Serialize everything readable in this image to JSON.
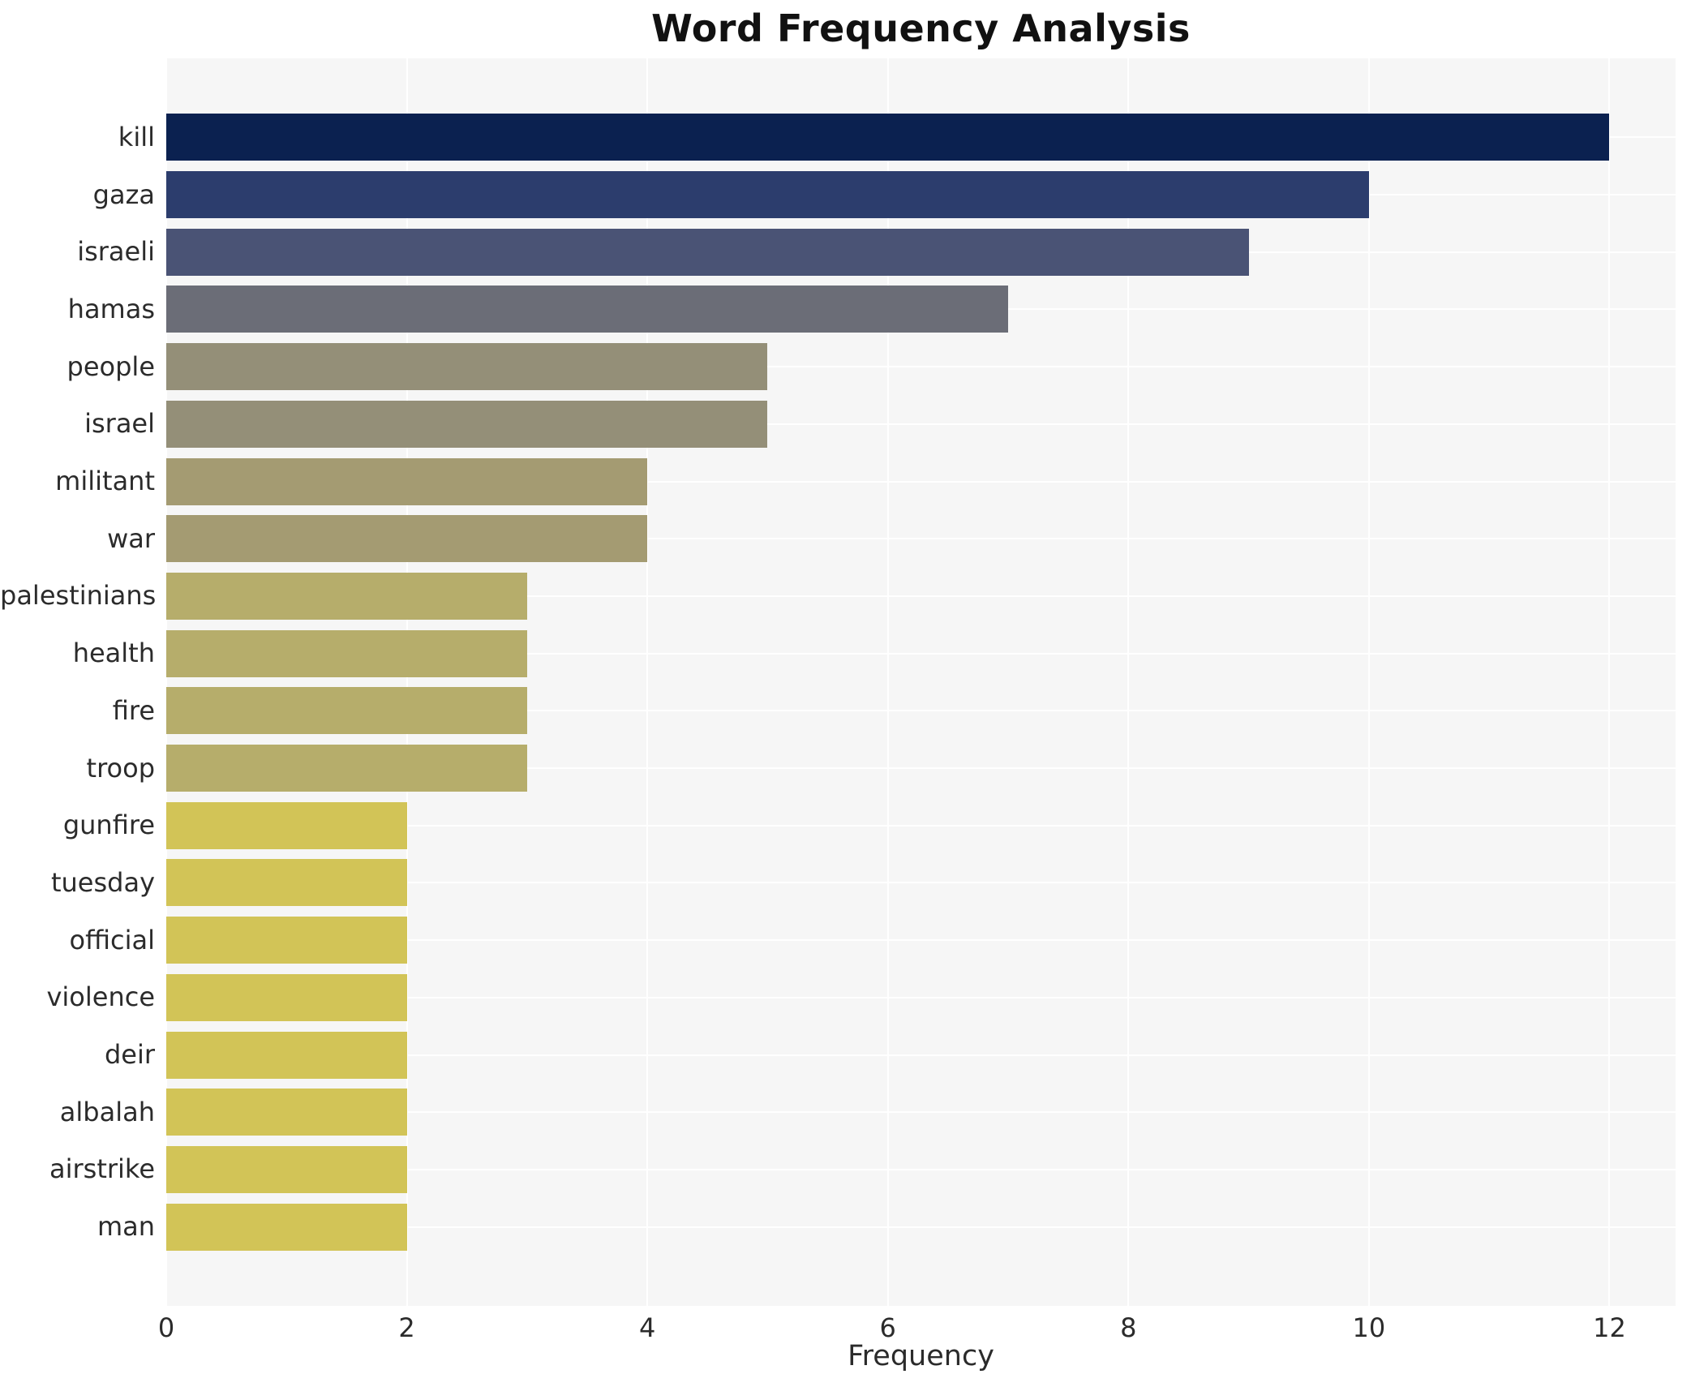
{
  "title": "Word Frequency Analysis",
  "chart_data": {
    "type": "bar",
    "orientation": "horizontal",
    "title": "Word Frequency Analysis",
    "xlabel": "Frequency",
    "ylabel": "",
    "categories": [
      "kill",
      "gaza",
      "israeli",
      "hamas",
      "people",
      "israel",
      "militant",
      "war",
      "palestinians",
      "health",
      "fire",
      "troop",
      "gunfire",
      "tuesday",
      "official",
      "violence",
      "deir",
      "albalah",
      "airstrike",
      "man"
    ],
    "values": [
      12,
      10,
      9,
      7,
      5,
      5,
      4,
      4,
      3,
      3,
      3,
      3,
      2,
      2,
      2,
      2,
      2,
      2,
      2,
      2
    ],
    "bar_colors": [
      "#0b2150",
      "#2c3d6d",
      "#4a5375",
      "#6b6d77",
      "#948f78",
      "#948f78",
      "#a49b72",
      "#a49b72",
      "#b6ad6b",
      "#b6ad6b",
      "#b6ad6b",
      "#b6ad6b",
      "#d2c457",
      "#d2c457",
      "#d2c457",
      "#d2c457",
      "#d2c457",
      "#d2c457",
      "#d2c457",
      "#d2c457"
    ],
    "x_ticks": [
      0,
      2,
      4,
      6,
      8,
      10,
      12
    ],
    "xlim": [
      0,
      12.55
    ],
    "grid": true,
    "legend": false,
    "gridline_color": "#ffffff",
    "plot_bg_color": "#f6f6f6",
    "figure_bg_color": "#ffffff",
    "tick_text_color": "#2b2b2b",
    "title_color": "#111111"
  }
}
